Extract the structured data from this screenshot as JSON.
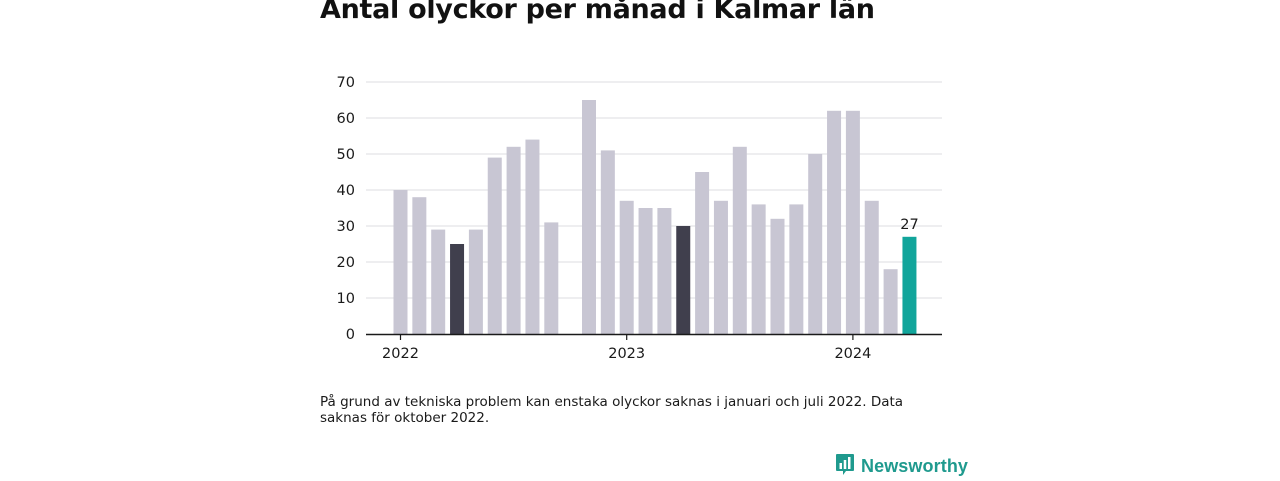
{
  "title": "Antal olyckor per månad i Kalmar län",
  "note": "På grund av tekniska problem kan enstaka olyckor saknas i januari och juli 2022. Data saknas för oktober 2022.",
  "brand": {
    "name": "Newsworthy",
    "logo_icon": "bar-chart-speech-icon"
  },
  "colors": {
    "default": "#c8c6d3",
    "highlight": "#403f4d",
    "current": "#11a59b",
    "grid": "#dcdce0",
    "axis": "#1a1a1a",
    "text": "#1a1a1a"
  },
  "chart_data": {
    "type": "bar",
    "title": "Antal olyckor per månad i Kalmar län",
    "xlabel": "",
    "ylabel": "",
    "ylim": [
      0,
      70
    ],
    "yticks": [
      0,
      10,
      20,
      30,
      40,
      50,
      60,
      70
    ],
    "xtick_labels": [
      "2022",
      "2023",
      "2024"
    ],
    "xtick_months": [
      "2022-01",
      "2023-01",
      "2024-01"
    ],
    "grid": true,
    "categories": [
      "2022-01",
      "2022-02",
      "2022-03",
      "2022-04",
      "2022-05",
      "2022-06",
      "2022-07",
      "2022-08",
      "2022-09",
      "2022-10",
      "2022-11",
      "2022-12",
      "2023-01",
      "2023-02",
      "2023-03",
      "2023-04",
      "2023-05",
      "2023-06",
      "2023-07",
      "2023-08",
      "2023-09",
      "2023-10",
      "2023-11",
      "2023-12",
      "2024-01",
      "2024-02",
      "2024-03",
      "2024-04"
    ],
    "values": [
      40,
      38,
      29,
      25,
      29,
      49,
      52,
      54,
      31,
      null,
      65,
      51,
      37,
      35,
      35,
      30,
      45,
      37,
      52,
      36,
      32,
      36,
      50,
      62,
      62,
      37,
      18,
      27
    ],
    "highlight": [
      "2022-04",
      "2023-04"
    ],
    "current": "2024-04",
    "data_labels": [
      {
        "category": "2024-04",
        "text": "27"
      }
    ]
  }
}
